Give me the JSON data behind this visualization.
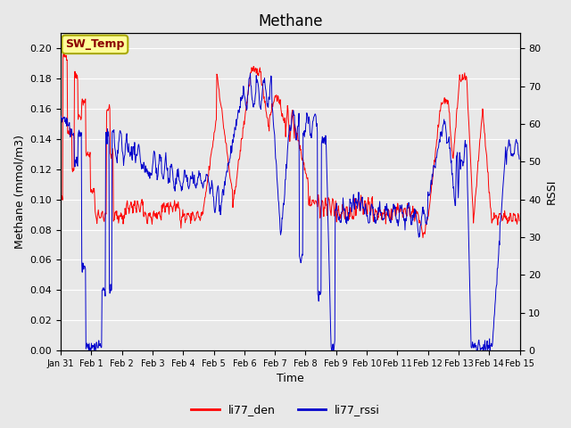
{
  "title": "Methane",
  "xlabel": "Time",
  "ylabel_left": "Methane (mmol/m3)",
  "ylabel_right": "RSSI",
  "ylim_left": [
    0.0,
    0.21
  ],
  "ylim_right": [
    0,
    84
  ],
  "yticks_left": [
    0.0,
    0.02,
    0.04,
    0.06,
    0.08,
    0.1,
    0.12,
    0.14,
    0.16,
    0.18,
    0.2
  ],
  "yticks_right": [
    0,
    10,
    20,
    30,
    40,
    50,
    60,
    70,
    80
  ],
  "xtick_labels": [
    "Jan 31",
    "Feb 1",
    "Feb 2",
    "Feb 3",
    "Feb 4",
    "Feb 5",
    "Feb 6",
    "Feb 7",
    "Feb 8",
    "Feb 9",
    "Feb 10",
    "Feb 11",
    "Feb 12",
    "Feb 13",
    "Feb 14",
    "Feb 15"
  ],
  "color_red": "#ff0000",
  "color_blue": "#0000cc",
  "background_plot": "#e8e8e8",
  "background_fig": "#e8e8e8",
  "annotation_text": "SW_Temp",
  "annotation_bg": "#ffff99",
  "annotation_border": "#aaaa00",
  "legend_red_label": "li77_den",
  "legend_blue_label": "li77_rssi",
  "grid_color": "#ffffff",
  "title_fontsize": 12,
  "axis_fontsize": 9,
  "tick_fontsize": 8
}
